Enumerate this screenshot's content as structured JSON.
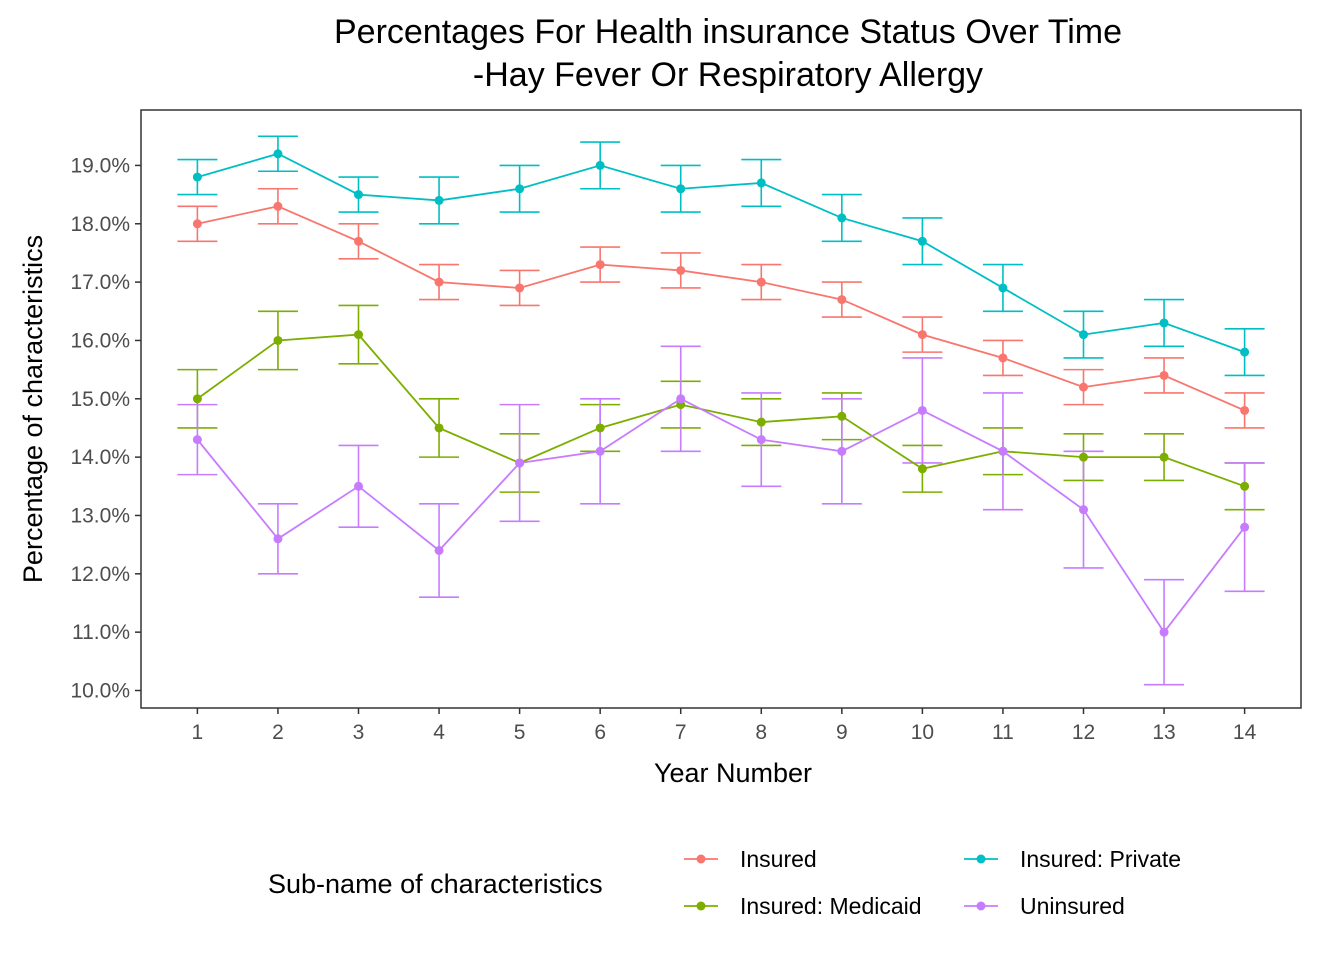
{
  "chart_data": {
    "type": "line",
    "title": "Percentages For Health insurance Status Over Time",
    "subtitle": "-Hay Fever Or Respiratory Allergy",
    "xlabel": "Year Number",
    "ylabel": "Percentage of characteristics",
    "x": [
      1,
      2,
      3,
      4,
      5,
      6,
      7,
      8,
      9,
      10,
      11,
      12,
      13,
      14
    ],
    "x_tick_labels": [
      "1",
      "2",
      "3",
      "4",
      "5",
      "6",
      "7",
      "8",
      "9",
      "10",
      "11",
      "12",
      "13",
      "14"
    ],
    "y_tick_labels": [
      "10.0%",
      "11.0%",
      "12.0%",
      "13.0%",
      "14.0%",
      "15.0%",
      "16.0%",
      "17.0%",
      "18.0%",
      "19.0%"
    ],
    "y_ticks": [
      10,
      11,
      12,
      13,
      14,
      15,
      16,
      17,
      18,
      19
    ],
    "xlim": [
      0.3,
      14.7
    ],
    "ylim": [
      9.7,
      19.95
    ],
    "grid": false,
    "error_bars": true,
    "legend": {
      "title": "Sub-name of characteristics",
      "position": "bottom",
      "columns": 2
    },
    "series": [
      {
        "name": "Insured",
        "color": "#F8766D",
        "values": [
          18.0,
          18.3,
          17.7,
          17.0,
          16.9,
          17.3,
          17.2,
          17.0,
          16.7,
          16.1,
          15.7,
          15.2,
          15.4,
          14.8
        ],
        "lower": [
          17.7,
          18.0,
          17.4,
          16.7,
          16.6,
          17.0,
          16.9,
          16.7,
          16.4,
          15.8,
          15.4,
          14.9,
          15.1,
          14.5
        ],
        "upper": [
          18.3,
          18.6,
          18.0,
          17.3,
          17.2,
          17.6,
          17.5,
          17.3,
          17.0,
          16.4,
          16.0,
          15.5,
          15.7,
          15.1
        ]
      },
      {
        "name": "Insured: Medicaid",
        "color": "#7CAE00",
        "values": [
          15.0,
          16.0,
          16.1,
          14.5,
          13.9,
          14.5,
          14.9,
          14.6,
          14.7,
          13.8,
          14.1,
          14.0,
          14.0,
          13.5
        ],
        "lower": [
          14.5,
          15.5,
          15.6,
          14.0,
          13.4,
          14.1,
          14.5,
          14.2,
          14.3,
          13.4,
          13.7,
          13.6,
          13.6,
          13.1
        ],
        "upper": [
          15.5,
          16.5,
          16.6,
          15.0,
          14.4,
          14.9,
          15.3,
          15.0,
          15.1,
          14.2,
          14.5,
          14.4,
          14.4,
          13.9
        ]
      },
      {
        "name": "Insured: Private",
        "color": "#00BFC4",
        "values": [
          18.8,
          19.2,
          18.5,
          18.4,
          18.6,
          19.0,
          18.6,
          18.7,
          18.1,
          17.7,
          16.9,
          16.1,
          16.3,
          15.8
        ],
        "lower": [
          18.5,
          18.9,
          18.2,
          18.0,
          18.2,
          18.6,
          18.2,
          18.3,
          17.7,
          17.3,
          16.5,
          15.7,
          15.9,
          15.4
        ],
        "upper": [
          19.1,
          19.5,
          18.8,
          18.8,
          19.0,
          19.4,
          19.0,
          19.1,
          18.5,
          18.1,
          17.3,
          16.5,
          16.7,
          16.2
        ]
      },
      {
        "name": "Uninsured",
        "color": "#C77CFF",
        "values": [
          14.3,
          12.6,
          13.5,
          12.4,
          13.9,
          14.1,
          15.0,
          14.3,
          14.1,
          14.8,
          14.1,
          13.1,
          11.0,
          12.8
        ],
        "lower": [
          13.7,
          12.0,
          12.8,
          11.6,
          12.9,
          13.2,
          14.1,
          13.5,
          13.2,
          13.9,
          13.1,
          12.1,
          10.1,
          11.7
        ],
        "upper": [
          14.9,
          13.2,
          14.2,
          13.2,
          14.9,
          15.0,
          15.9,
          15.1,
          15.0,
          15.7,
          15.1,
          14.1,
          11.9,
          13.9
        ]
      }
    ]
  }
}
